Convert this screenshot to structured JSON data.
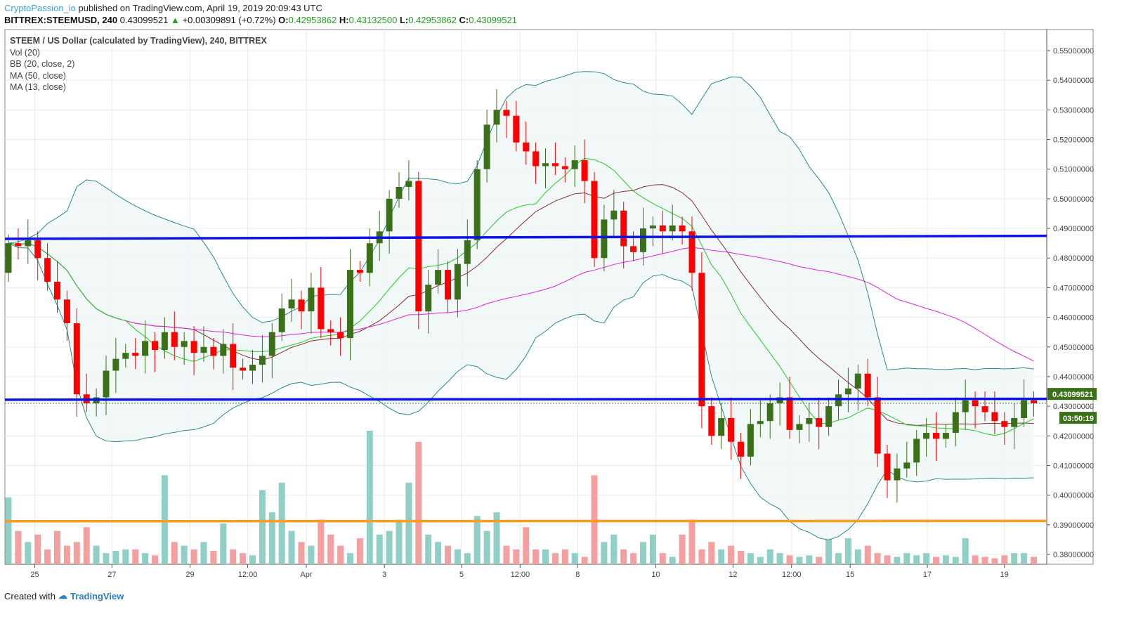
{
  "header": {
    "author": "CryptoPassion_io",
    "published": "published on TradingView.com, April 19, 2019 20:09:43 UTC",
    "symbol": "BITTREX:STEEMUSD, 240",
    "last": "0.43099521",
    "change": "+0.00309891 (+0.72%)",
    "o_label": "O:",
    "o": "0.42953862",
    "h_label": "H:",
    "h": "0.43132500",
    "l_label": "L:",
    "l": "0.42953862",
    "c_label": "C:",
    "c": "0.43099521"
  },
  "legend": {
    "title": "STEEM / US Dollar (calculated by TradingView), 240, BITTREX",
    "vol": "Vol (20)",
    "bb": "BB (20, close, 2)",
    "ma50": "MA (50, close)",
    "ma13": "MA (13, close)"
  },
  "footer": {
    "created_with": "Created with",
    "brand": "TradingView"
  },
  "colors": {
    "up": "#3a7017",
    "down": "#ff0000",
    "vol_up": "#8fcfc5",
    "vol_down": "#f5a0a0",
    "bb": "#2b8a8a",
    "bb_fill": "#eef7f6",
    "basis": "#8b2c2c",
    "ma13": "#22cc22",
    "ma50": "#e020e0",
    "hline_blue": "#0a14e6",
    "hline_orange": "#ff9b1a",
    "last_bg": "#3a7017"
  },
  "chart_data": {
    "type": "candlestick",
    "first_open": 0.475,
    "close": [
      0.485,
      0.484,
      0.486,
      0.48,
      0.472,
      0.466,
      0.458,
      0.434,
      0.431,
      0.433,
      0.442,
      0.446,
      0.448,
      0.447,
      0.452,
      0.449,
      0.455,
      0.45,
      0.452,
      0.448,
      0.45,
      0.447,
      0.451,
      0.443,
      0.442,
      0.444,
      0.447,
      0.455,
      0.463,
      0.466,
      0.462,
      0.47,
      0.456,
      0.455,
      0.453,
      0.476,
      0.475,
      0.485,
      0.489,
      0.5,
      0.504,
      0.506,
      0.462,
      0.471,
      0.476,
      0.466,
      0.478,
      0.486,
      0.51,
      0.525,
      0.53,
      0.528,
      0.519,
      0.516,
      0.511,
      0.512,
      0.511,
      0.51,
      0.513,
      0.506,
      0.48,
      0.493,
      0.496,
      0.484,
      0.482,
      0.49,
      0.491,
      0.489,
      0.491,
      0.489,
      0.475,
      0.43,
      0.42,
      0.426,
      0.418,
      0.413,
      0.424,
      0.425,
      0.431,
      0.433,
      0.422,
      0.424,
      0.426,
      0.423,
      0.43,
      0.434,
      0.436,
      0.441,
      0.433,
      0.414,
      0.405,
      0.409,
      0.411,
      0.419,
      0.421,
      0.419,
      0.421,
      0.428,
      0.432,
      0.43,
      0.428,
      0.425,
      0.423,
      0.426,
      0.432,
      0.431
    ],
    "volume": [
      90,
      45,
      30,
      40,
      20,
      45,
      25,
      30,
      50,
      25,
      15,
      18,
      20,
      20,
      15,
      12,
      120,
      30,
      25,
      20,
      30,
      18,
      55,
      20,
      15,
      12,
      100,
      70,
      110,
      45,
      30,
      25,
      60,
      40,
      25,
      15,
      35,
      180,
      40,
      45,
      60,
      110,
      165,
      40,
      30,
      25,
      20,
      15,
      65,
      45,
      70,
      25,
      20,
      50,
      20,
      20,
      15,
      20,
      15,
      10,
      120,
      30,
      40,
      20,
      15,
      30,
      40,
      15,
      10,
      40,
      60,
      20,
      30,
      20,
      25,
      18,
      15,
      10,
      20,
      15,
      12,
      10,
      12,
      10,
      35,
      15,
      35,
      20,
      25,
      15,
      12,
      10,
      15,
      12,
      15,
      10,
      12,
      10,
      35,
      12,
      10,
      8,
      12,
      15,
      15,
      10
    ],
    "yaxis_ticks": [
      "0.55000000",
      "0.54000000",
      "0.53000000",
      "0.52000000",
      "0.51000000",
      "0.50000000",
      "0.49000000",
      "0.48000000",
      "0.47000000",
      "0.46000000",
      "0.45000000",
      "0.44000000",
      "0.43000000",
      "0.42000000",
      "0.41000000",
      "0.40000000",
      "0.39000000",
      "0.38000000"
    ],
    "ylim": [
      0.38,
      0.55
    ],
    "xaxis_ticks": [
      {
        "label": "25",
        "at": 2.7
      },
      {
        "label": "27",
        "at": 10.6
      },
      {
        "label": "29",
        "at": 18.6
      },
      {
        "label": "12:00",
        "at": 24.5
      },
      {
        "label": "Apr",
        "at": 30.5
      },
      {
        "label": "3",
        "at": 38.5
      },
      {
        "label": "5",
        "at": 46.4
      },
      {
        "label": "12:00",
        "at": 52.4
      },
      {
        "label": "8",
        "at": 58.3
      },
      {
        "label": "10",
        "at": 66.3
      },
      {
        "label": "12",
        "at": 74.2
      },
      {
        "label": "12:00",
        "at": 80.2
      },
      {
        "label": "15",
        "at": 86.2
      },
      {
        "label": "17",
        "at": 94.1
      },
      {
        "label": "19",
        "at": 102
      }
    ],
    "hlines": [
      {
        "color": "blue",
        "from": 0.4865,
        "to": 0.4875
      },
      {
        "color": "blue",
        "from": 0.4322,
        "to": 0.4325
      },
      {
        "color": "orange",
        "from": 0.3912,
        "to": 0.3913
      }
    ],
    "last_price_label": "0.43099521",
    "countdown": "03:50:19"
  }
}
